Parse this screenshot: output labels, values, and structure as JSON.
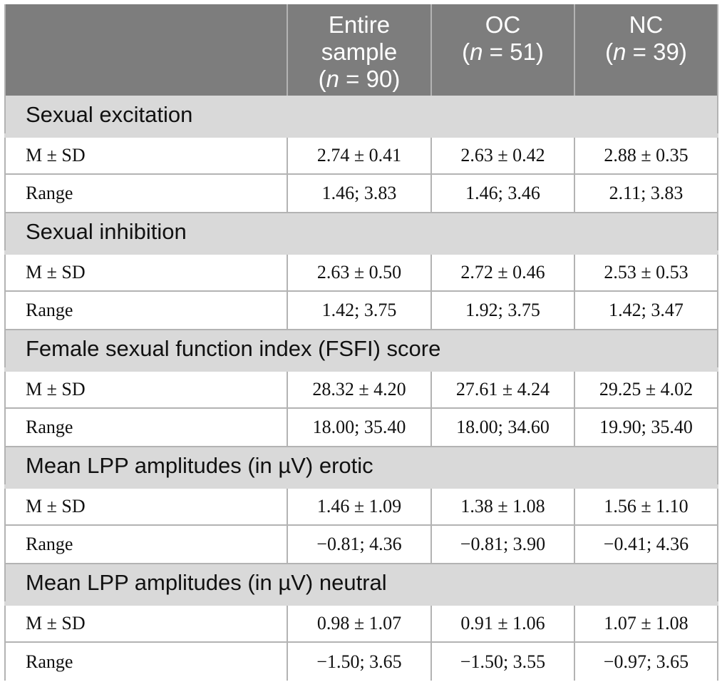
{
  "header": {
    "col0": "",
    "col1": {
      "line1": "Entire",
      "line2": "sample",
      "n": "(n = 90)",
      "n_italic": "n",
      "n_rest": " = 90)"
    },
    "col2": {
      "line1": "OC",
      "n_italic": "n",
      "n_rest": " = 51)"
    },
    "col3": {
      "line1": "NC",
      "n_italic": "n",
      "n_rest": " = 39)"
    },
    "open_paren": "("
  },
  "sections": [
    {
      "title": "Sexual excitation",
      "rows": [
        {
          "label": "M ± SD",
          "values": [
            "2.74 ± 0.41",
            "2.63 ± 0.42",
            "2.88 ± 0.35"
          ]
        },
        {
          "label": "Range",
          "values": [
            "1.46; 3.83",
            "1.46; 3.46",
            "2.11; 3.83"
          ]
        }
      ]
    },
    {
      "title": "Sexual inhibition",
      "rows": [
        {
          "label": "M ± SD",
          "values": [
            "2.63 ± 0.50",
            "2.72 ± 0.46",
            "2.53 ± 0.53"
          ]
        },
        {
          "label": "Range",
          "values": [
            "1.42; 3.75",
            "1.92; 3.75",
            "1.42; 3.47"
          ]
        }
      ]
    },
    {
      "title": "Female sexual function index (FSFI) score",
      "rows": [
        {
          "label": "M ± SD",
          "values": [
            "28.32 ± 4.20",
            "27.61 ± 4.24",
            "29.25 ± 4.02"
          ]
        },
        {
          "label": "Range",
          "values": [
            "18.00; 35.40",
            "18.00; 34.60",
            "19.90; 35.40"
          ]
        }
      ]
    },
    {
      "title": "Mean LPP amplitudes (in µV) erotic",
      "rows": [
        {
          "label": "M ± SD",
          "values": [
            "1.46 ± 1.09",
            "1.38 ± 1.08",
            "1.56 ± 1.10"
          ]
        },
        {
          "label": "Range",
          "values": [
            "−0.81; 4.36",
            "−0.81; 3.90",
            "−0.41; 4.36"
          ]
        }
      ]
    },
    {
      "title": "Mean LPP amplitudes (in µV) neutral",
      "rows": [
        {
          "label": "M ± SD",
          "values": [
            "0.98 ± 1.07",
            "0.91 ± 1.06",
            "1.07 ± 1.08"
          ]
        },
        {
          "label": "Range",
          "values": [
            "−1.50; 3.65",
            "−1.50; 3.55",
            "−0.97; 3.65"
          ]
        }
      ]
    }
  ]
}
